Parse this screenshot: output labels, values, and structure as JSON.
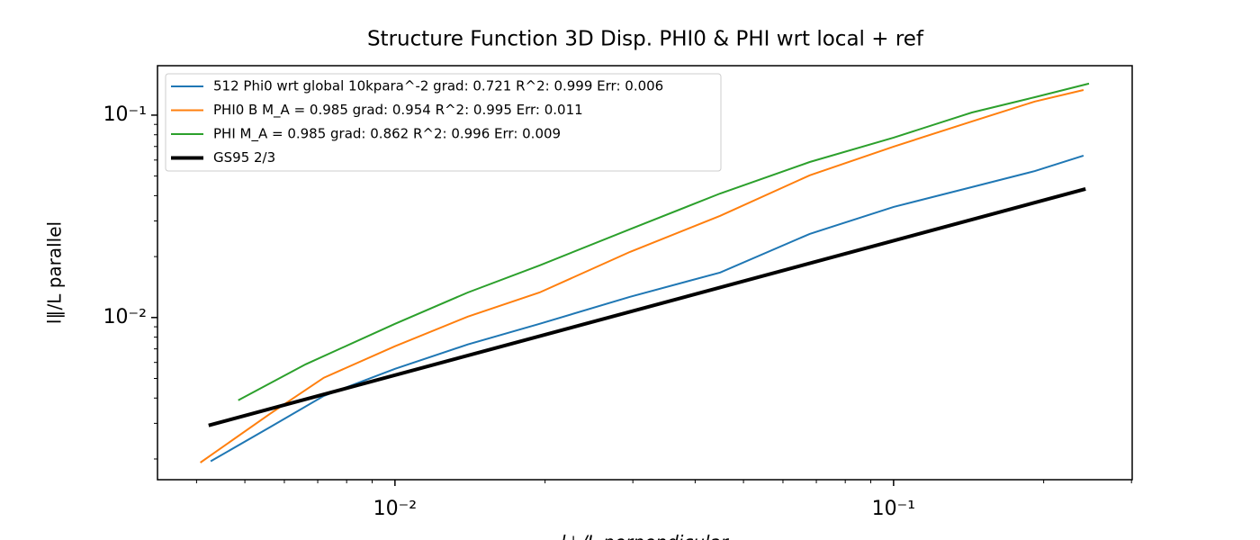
{
  "chart_data": {
    "type": "line",
    "title": "Structure Function 3D Disp. PHI0 & PHI wrt local + ref",
    "x_label": "l⊥/L perpendicular",
    "y_label": "l∥/L parallel",
    "log_x": true,
    "log_y": true,
    "xlim": [
      0.00334,
      0.301
    ],
    "ylim": [
      0.00158,
      0.1755
    ],
    "xticks": [
      {
        "value": 0.01,
        "label": "10⁻²"
      },
      {
        "value": 0.1,
        "label": "10⁻¹"
      }
    ],
    "yticks": [
      {
        "value": 0.01,
        "label": "10⁻²"
      },
      {
        "value": 0.1,
        "label": "10⁻¹"
      }
    ],
    "xminorticks": [
      0.004,
      0.005,
      0.006,
      0.007,
      0.008,
      0.009,
      0.02,
      0.03,
      0.04,
      0.05,
      0.06,
      0.07,
      0.08,
      0.09,
      0.2,
      0.3
    ],
    "yminorticks": [
      0.002,
      0.003,
      0.004,
      0.005,
      0.006,
      0.007,
      0.008,
      0.009,
      0.02,
      0.03,
      0.04,
      0.05,
      0.06,
      0.07,
      0.08,
      0.09
    ],
    "legend": "upper left",
    "series": [
      {
        "name": "512 Phi0 wrt global 10kpara^-2 grad: 0.721 R^2: 0.999  Err: 0.006",
        "color": "#1f77b4",
        "width": 2,
        "x": [
          0.00427,
          0.00561,
          0.0072,
          0.01,
          0.014,
          0.0195,
          0.0296,
          0.0449,
          0.0679,
          0.1,
          0.1436,
          0.192,
          0.2404
        ],
        "values": [
          0.00195,
          0.00287,
          0.0041,
          0.00558,
          0.00736,
          0.00931,
          0.01265,
          0.01668,
          0.0259,
          0.0352,
          0.0441,
          0.0529,
          0.0631
        ]
      },
      {
        "name": "PHI0 B M_A = 0.985 grad: 0.954 R^2: 0.995  Err: 0.011",
        "color": "#ff7f0e",
        "width": 2,
        "x": [
          0.00407,
          0.00561,
          0.0072,
          0.01,
          0.014,
          0.0195,
          0.0296,
          0.0449,
          0.0679,
          0.1,
          0.1436,
          0.192,
          0.2404
        ],
        "values": [
          0.00192,
          0.00334,
          0.00504,
          0.00721,
          0.0101,
          0.0133,
          0.0211,
          0.0318,
          0.0504,
          0.0699,
          0.0931,
          0.1167,
          0.1331
        ]
      },
      {
        "name": "PHI M_A = 0.985 grad: 0.862 R^2: 0.996  Err: 0.009",
        "color": "#2ca02c",
        "width": 2,
        "x": [
          0.00485,
          0.00662,
          0.01,
          0.014,
          0.0195,
          0.0296,
          0.0449,
          0.0679,
          0.1,
          0.1436,
          0.192,
          0.2466
        ],
        "values": [
          0.0039,
          0.00587,
          0.00931,
          0.0133,
          0.0181,
          0.0273,
          0.041,
          0.0587,
          0.0774,
          0.103,
          0.1227,
          0.1431
        ]
      },
      {
        "name": "GS95 2/3",
        "color": "#000000",
        "width": 4,
        "x": [
          0.00423,
          0.2427
        ],
        "values": [
          0.00293,
          0.0432
        ]
      }
    ]
  }
}
